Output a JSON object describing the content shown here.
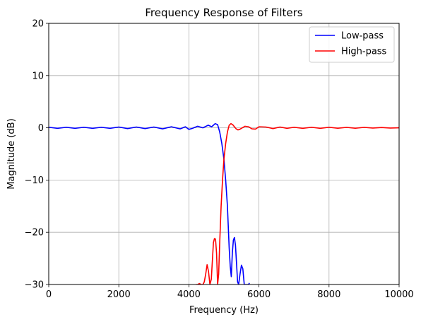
{
  "chart_data": {
    "type": "line",
    "title": "Frequency Response of Filters",
    "xlabel": "Frequency (Hz)",
    "ylabel": "Magnitude (dB)",
    "xlim": [
      0,
      10000
    ],
    "ylim": [
      -30,
      20
    ],
    "xticks": [
      0,
      2000,
      4000,
      6000,
      8000,
      10000
    ],
    "yticks": [
      -30,
      -20,
      -10,
      0,
      10,
      20
    ],
    "grid": true,
    "legend_position": "top-right",
    "series": [
      {
        "name": "Low-pass",
        "color": "#0000ff",
        "x": [
          0,
          250,
          500,
          750,
          1000,
          1250,
          1500,
          1750,
          2000,
          2250,
          2500,
          2750,
          3000,
          3250,
          3500,
          3750,
          3900,
          4000,
          4100,
          4250,
          4400,
          4550,
          4650,
          4750,
          4820,
          4880,
          4940,
          5000,
          5050,
          5100,
          5150,
          5180,
          5210,
          5240,
          5270,
          5300,
          5330,
          5360,
          5390,
          5420,
          5460,
          5500,
          5540,
          5580,
          5620,
          5660,
          5700,
          5730
        ],
        "y": [
          0.1,
          -0.1,
          0.1,
          -0.1,
          0.1,
          -0.1,
          0.1,
          -0.1,
          0.15,
          -0.15,
          0.15,
          -0.15,
          0.15,
          -0.2,
          0.2,
          -0.2,
          0.2,
          -0.3,
          -0.1,
          0.3,
          0,
          0.5,
          0.2,
          0.8,
          0.6,
          -0.8,
          -3,
          -6,
          -10,
          -15,
          -23,
          -26.5,
          -28.5,
          -24,
          -21.5,
          -21,
          -22.5,
          -26,
          -29.5,
          -30,
          -28,
          -26.3,
          -27,
          -30,
          -30,
          -30,
          -30,
          -29.7
        ]
      },
      {
        "name": "High-pass",
        "color": "#ff0000",
        "x": [
          4200,
          4250,
          4300,
          4350,
          4400,
          4440,
          4480,
          4520,
          4560,
          4600,
          4640,
          4670,
          4700,
          4730,
          4760,
          4790,
          4820,
          4850,
          4880,
          4920,
          4960,
          5000,
          5050,
          5100,
          5150,
          5200,
          5250,
          5300,
          5350,
          5400,
          5450,
          5500,
          5600,
          5700,
          5800,
          5900,
          6000,
          6200,
          6400,
          6600,
          6800,
          7000,
          7250,
          7500,
          7750,
          8000,
          8250,
          8500,
          8750,
          9000,
          9250,
          9500,
          9750,
          10000
        ],
        "y": [
          -30,
          -30,
          -29.8,
          -30,
          -30,
          -29.5,
          -28,
          -26.2,
          -27.5,
          -30,
          -29,
          -25.5,
          -22,
          -21.2,
          -21.3,
          -24,
          -30,
          -28,
          -22,
          -15,
          -10,
          -6,
          -3,
          -0.8,
          0.5,
          0.8,
          0.6,
          0.2,
          -0.2,
          -0.4,
          -0.3,
          -0.1,
          0.3,
          0.2,
          -0.2,
          -0.25,
          0.2,
          0.15,
          -0.15,
          0.15,
          -0.1,
          0.1,
          -0.1,
          0.1,
          -0.1,
          0.1,
          -0.08,
          0.08,
          -0.08,
          0.08,
          -0.05,
          0.05,
          -0.05,
          0.0
        ]
      }
    ]
  }
}
